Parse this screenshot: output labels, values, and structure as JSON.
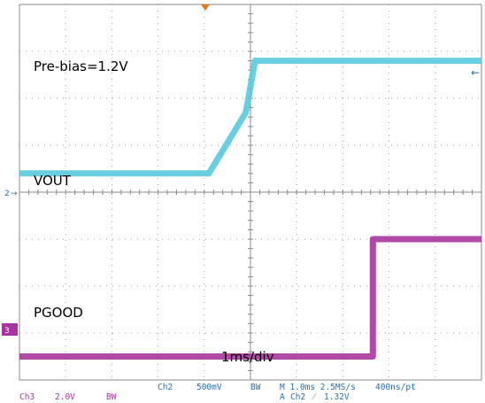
{
  "chart_data": {
    "type": "line",
    "x_unit": "ms",
    "x_range": [
      0,
      10
    ],
    "divisions": {
      "x": 10,
      "y": 8
    },
    "grid": true,
    "series": [
      {
        "name": "VOUT",
        "channel": "Ch2",
        "color": "#59c9dc",
        "scale": "500mV",
        "unit": "V",
        "y_range": [
          -1,
          3
        ],
        "x": [
          0.0,
          4.1,
          4.9,
          5.1,
          10.0
        ],
        "values": [
          1.2,
          1.2,
          1.85,
          2.4,
          2.4
        ]
      },
      {
        "name": "PGOOD",
        "channel": "Ch3",
        "color": "#a8359f",
        "scale": "2.0V",
        "unit": "V",
        "y_range": [
          -1,
          15
        ],
        "x": [
          0.0,
          7.65,
          7.65,
          10.0
        ],
        "values": [
          0.0,
          0.0,
          5.0,
          5.0
        ]
      }
    ],
    "annotations": {
      "prebias": "Pre-bias=1.2V",
      "vout": "VOUT",
      "pgood": "PGOOD",
      "timebase": "1ms/div"
    }
  },
  "markers": {
    "ch2": "2",
    "ch3": "3",
    "trigger_level_arrow": "←"
  },
  "status": {
    "ch3_label": "Ch3",
    "ch3_scale": "2.0V",
    "ch3_bw": "BW",
    "ch2_label": "Ch2",
    "ch2_scale": "500mV",
    "ch2_bw": "BW",
    "horizontal": "M 1.0ms 2.5MS/s",
    "record": "400ns/pt",
    "trigger_mode": "A",
    "trigger_source": "Ch2",
    "trigger_slope": "⁄",
    "trigger_level": "1.32V"
  }
}
